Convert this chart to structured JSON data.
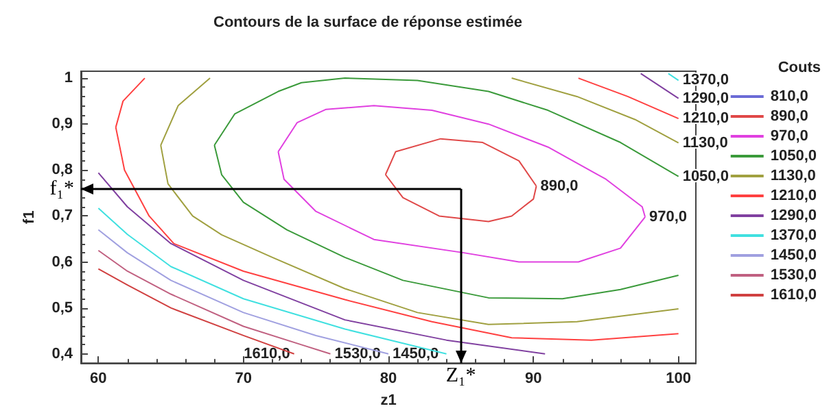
{
  "chart_data": {
    "type": "line",
    "title": "Contours de la surface de réponse estimée",
    "xlabel": "z1",
    "ylabel": "f1",
    "legend_title": "Couts",
    "legend": "right",
    "xlim": [
      58.8,
      101.2
    ],
    "ylim": [
      0.38,
      1.015
    ],
    "xticks": [
      60,
      70,
      80,
      90,
      100
    ],
    "yticks": [
      {
        "value": 0.4,
        "label": "0,4"
      },
      {
        "value": 0.5,
        "label": "0,5"
      },
      {
        "value": 0.6,
        "label": "0,6"
      },
      {
        "value": 0.7,
        "label": "0,7"
      },
      {
        "value": 0.8,
        "label": "0,8"
      },
      {
        "value": 0.9,
        "label": "0,9"
      },
      1
    ],
    "series": [
      {
        "name": "810,0",
        "color": "#6b6bd6"
      },
      {
        "name": "890,0",
        "color": "#e04848",
        "x": [
          79.8,
          80.5,
          83.6,
          86.5,
          89,
          90.2,
          85,
          79.8,
          81,
          83.5,
          86.9,
          88.5,
          90,
          90.2
        ],
        "values": [
          0.79,
          0.84,
          0.868,
          0.86,
          0.82,
          0.765,
          null,
          0.79,
          0.74,
          0.7,
          0.688,
          0.7,
          0.737,
          0.765
        ]
      },
      {
        "name": "970,0",
        "color": "#e040e0",
        "x": [
          72.4,
          73.7,
          75.7,
          79,
          83,
          86.9,
          91,
          95,
          97.5,
          97.7,
          85,
          72.4,
          72.8,
          75,
          79,
          85.2,
          89,
          93.1,
          96,
          97.7
        ],
        "values": [
          0.84,
          0.903,
          0.932,
          0.94,
          0.93,
          0.9,
          0.85,
          0.78,
          0.72,
          0.698,
          null,
          0.84,
          0.78,
          0.71,
          0.649,
          0.62,
          0.6,
          0.6,
          0.63,
          0.698
        ]
      },
      {
        "name": "1050,0",
        "color": "#3a9a3a",
        "x": [
          68,
          69.4,
          72.4,
          74,
          77,
          82,
          86.9,
          91,
          96,
          100
        ],
        "values": [
          0.854,
          0.922,
          0.971,
          0.99,
          1.0,
          0.995,
          0.971,
          0.93,
          0.86,
          0.786
        ]
      },
      {
        "color": "#3a9a3a",
        "x": [
          68,
          68.5,
          70,
          73,
          77,
          81,
          86.9,
          92,
          96,
          100
        ],
        "values": [
          0.854,
          0.79,
          0.73,
          0.67,
          0.61,
          0.56,
          0.522,
          0.52,
          0.54,
          0.571
        ]
      },
      {
        "name": "1130,0",
        "color": "#a0a040",
        "x": [
          64.3,
          64.8,
          66.5,
          68.5,
          72,
          77,
          82,
          86.9,
          93,
          100
        ],
        "values": [
          0.854,
          0.77,
          0.7,
          0.659,
          0.61,
          0.542,
          0.49,
          0.464,
          0.47,
          0.498
        ]
      },
      {
        "color": "#a0a040",
        "x": [
          64.3,
          65.5,
          67.7,
          78,
          88.5,
          93,
          97,
          100
        ],
        "values": [
          0.854,
          0.94,
          1.0,
          null,
          1.0,
          0.96,
          0.91,
          0.859
        ]
      },
      {
        "name": "1210,0",
        "color": "#ff4040",
        "x": [
          61.2,
          61.8,
          63.5,
          65.2,
          70,
          77,
          83,
          88.5,
          94,
          100
        ],
        "values": [
          0.893,
          0.8,
          0.7,
          0.64,
          0.58,
          0.518,
          0.47,
          0.435,
          0.43,
          0.444
        ]
      },
      {
        "color": "#ff4040",
        "x": [
          61.2,
          61.7,
          63.2,
          78,
          93.1,
          96.5,
          100
        ],
        "values": [
          0.893,
          0.95,
          1.0,
          null,
          1.0,
          0.96,
          0.912
        ]
      },
      {
        "name": "1290,0",
        "color": "#8040a0",
        "x": [
          60,
          62,
          65,
          70,
          77,
          84,
          90.8,
          95,
          97.4,
          100
        ],
        "values": [
          0.794,
          0.72,
          0.64,
          0.56,
          0.474,
          0.43,
          0.4,
          null,
          1.01,
          0.956
        ]
      },
      {
        "name": "1370,0",
        "color": "#40e0e0",
        "x": [
          60,
          62,
          65,
          70,
          77,
          84,
          92,
          99.3,
          100
        ],
        "values": [
          0.717,
          0.66,
          0.59,
          0.52,
          0.454,
          0.4,
          null,
          1.01,
          0.995
        ]
      },
      {
        "name": "1450,0",
        "color": "#a0a0e0",
        "x": [
          60,
          62,
          65,
          70,
          75,
          80
        ],
        "values": [
          0.67,
          0.62,
          0.56,
          0.49,
          0.44,
          0.4
        ]
      },
      {
        "name": "1530,0",
        "color": "#c06080",
        "x": [
          60,
          62,
          65,
          70,
          74,
          76
        ],
        "values": [
          0.625,
          0.58,
          0.53,
          0.46,
          0.42,
          0.4
        ]
      },
      {
        "name": "1610,0",
        "color": "#d04040",
        "x": [
          60,
          62,
          65,
          70,
          73.5
        ],
        "values": [
          0.585,
          0.55,
          0.5,
          0.44,
          0.4
        ]
      }
    ],
    "ref_lines": [
      {
        "axis": "x",
        "value": 85,
        "label": "Z₁*"
      },
      {
        "axis": "y",
        "value": 0.759,
        "label": "f₁*"
      }
    ],
    "annotations": [
      {
        "text": "890,0",
        "x": 90.2,
        "y": 0.765
      },
      {
        "text": "970,0",
        "x": 97.7,
        "y": 0.698
      },
      {
        "text": "1050,0",
        "x": 100,
        "y": 0.786
      },
      {
        "text": "1130,0",
        "x": 100,
        "y": 0.859
      },
      {
        "text": "1210,0",
        "x": 100,
        "y": 0.912
      },
      {
        "text": "1290,0",
        "x": 100,
        "y": 0.956
      },
      {
        "text": "1370,0",
        "x": 100,
        "y": 0.995
      },
      {
        "text": "1610,0",
        "x": 73.5,
        "y": 0.4
      },
      {
        "text": "1530,0",
        "x": 76,
        "y": 0.4
      },
      {
        "text": "1450,0",
        "x": 80,
        "y": 0.4
      }
    ]
  }
}
